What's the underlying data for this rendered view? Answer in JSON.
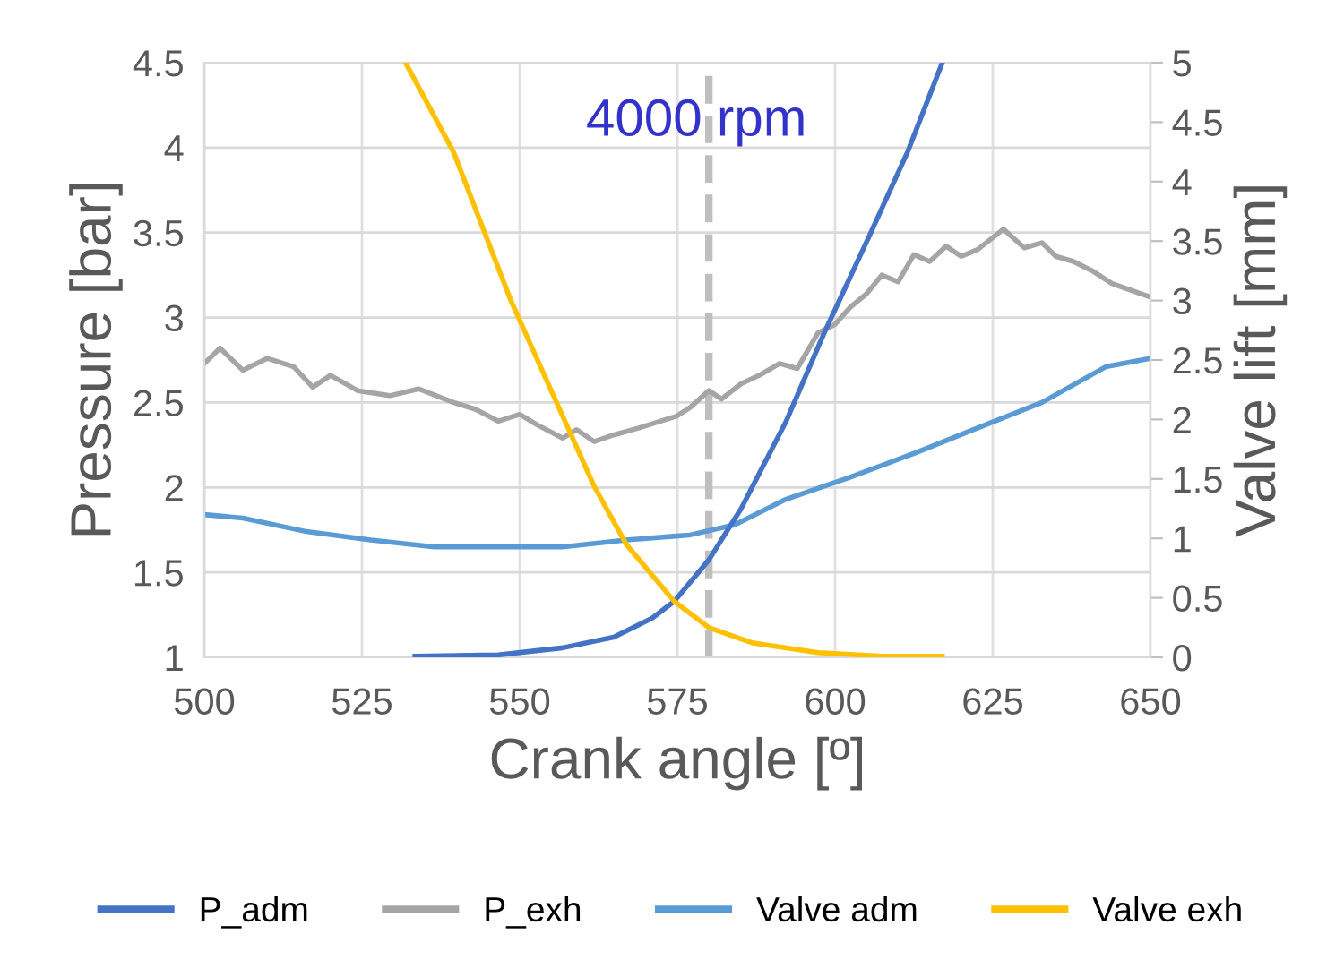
{
  "chart_data": {
    "type": "line",
    "xlabel": "Crank angle [º]",
    "ylabel": "Pressure [bar]",
    "y2label": "Valve lift [mm]",
    "xlim": [
      500,
      650
    ],
    "xticks": [
      500,
      525,
      550,
      575,
      600,
      625,
      650
    ],
    "ylim": [
      1,
      4.5
    ],
    "yticks": [
      1,
      1.5,
      2,
      2.5,
      3,
      3.5,
      4,
      4.5
    ],
    "y2lim": [
      0,
      5
    ],
    "y2ticks": [
      0,
      0.5,
      1,
      1.5,
      2,
      2.5,
      3,
      3.5,
      4,
      4.5,
      5
    ],
    "grid": true,
    "legend": "bottom",
    "marker": "none",
    "line_style": "solid",
    "annotations": [
      "4000 rpm"
    ],
    "ref_lines": [
      {
        "axis": "x",
        "value": 580,
        "color": "#bfbfbf",
        "line_style": "dashed"
      }
    ],
    "series": [
      {
        "name": "P_adm",
        "color": "#4472c4",
        "axis": "y2",
        "x": [
          533.4,
          546.6,
          556.8,
          564.9,
          571,
          574.5,
          580,
          585.1,
          592.2,
          598.3,
          605.4,
          611.5,
          617
        ],
        "values": [
          0.01,
          0.02,
          0.08,
          0.17,
          0.33,
          0.47,
          0.82,
          1.25,
          1.98,
          2.73,
          3.54,
          4.25,
          5.0
        ]
      },
      {
        "name": "P_exh",
        "color": "#a5a5a5",
        "x": [
          500,
          502.5,
          506.1,
          510,
          514.2,
          517.2,
          520,
          524.3,
          529.4,
          534,
          539.5,
          543,
          546.6,
          550,
          552.7,
          556.8,
          559,
          561.8,
          565,
          568.9,
          574.9,
          577,
          580,
          582,
          585.1,
          588,
          591.2,
          594,
          597.3,
          600,
          602.4,
          605,
          607.4,
          610,
          612.5,
          615,
          617.6,
          620,
          622.6,
          626.7,
          630,
          632.8,
          635,
          637.8,
          641,
          643.9,
          650
        ],
        "values": [
          2.73,
          2.82,
          2.69,
          2.76,
          2.71,
          2.59,
          2.66,
          2.57,
          2.54,
          2.58,
          2.5,
          2.46,
          2.39,
          2.43,
          2.37,
          2.29,
          2.34,
          2.27,
          2.31,
          2.35,
          2.42,
          2.47,
          2.57,
          2.52,
          2.61,
          2.66,
          2.73,
          2.7,
          2.91,
          2.96,
          3.06,
          3.14,
          3.25,
          3.21,
          3.37,
          3.33,
          3.42,
          3.36,
          3.4,
          3.52,
          3.41,
          3.44,
          3.36,
          3.33,
          3.27,
          3.2,
          3.12
        ]
      },
      {
        "name": "Valve adm",
        "color": "#5b9bd5",
        "x": [
          500,
          506.1,
          516.2,
          526.4,
          536.5,
          546.6,
          556.8,
          566.9,
          577,
          584.1,
          592.2,
          602.4,
          612.5,
          622.6,
          632.8,
          642.9,
          650
        ],
        "values": [
          1.84,
          1.82,
          1.74,
          1.69,
          1.65,
          1.65,
          1.65,
          1.69,
          1.72,
          1.78,
          1.93,
          2.06,
          2.2,
          2.35,
          2.5,
          2.71,
          2.76
        ]
      },
      {
        "name": "Valve exh",
        "color": "#ffc000",
        "axis": "y2",
        "x": [
          531.9,
          539.5,
          548.6,
          556.8,
          561.8,
          566.9,
          574.5,
          580,
          587,
          597.3,
          607.4,
          617
        ],
        "values": [
          5.0,
          4.25,
          3.0,
          2.03,
          1.44,
          0.95,
          0.47,
          0.25,
          0.12,
          0.04,
          0.01,
          0.01
        ]
      }
    ]
  }
}
